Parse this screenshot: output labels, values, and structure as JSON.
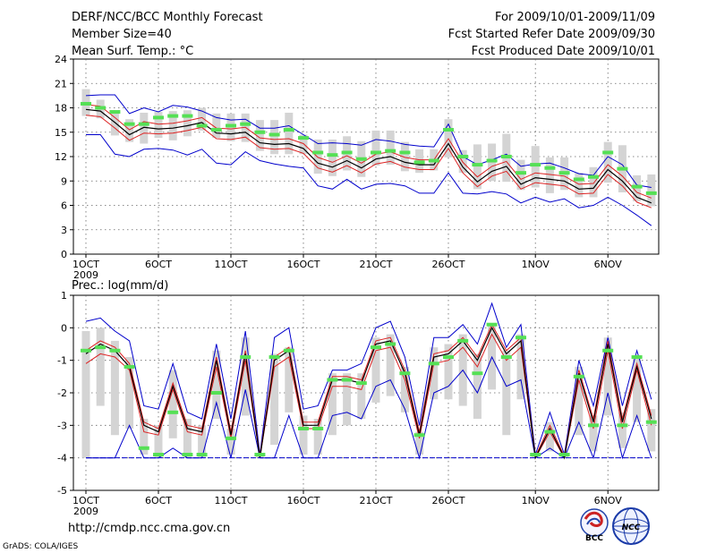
{
  "header": {
    "left_lines": [
      "DERF/NCC/BCC Monthly Forecast",
      "Member Size=40",
      "Mean Surf. Temp.: °C"
    ],
    "right_lines": [
      "For 2009/10/01-2009/11/09",
      "Fcst Started Refer Date 2009/09/30",
      "Fcst Produced Date 2009/10/01"
    ]
  },
  "footer": {
    "url": "http://cmdp.ncc.cma.gov.cn",
    "credit": "GrADS: COLA/IGES",
    "logo_bcc_text": "BCC",
    "logo_ncc_text": "NCC"
  },
  "colors": {
    "box": "#d4d4d4",
    "obs": "#55e055",
    "mean": "#000000",
    "inner": "#dd2222",
    "outer": "#0000cc",
    "grid": "#666666"
  },
  "chart_data": [
    {
      "type": "line",
      "title": "Mean Surf. Temp.: °C",
      "days": 40,
      "ylim": [
        0,
        24
      ],
      "yticks": [
        0,
        3,
        6,
        9,
        12,
        15,
        18,
        21,
        24
      ],
      "xtick_labels": [
        "1OCT",
        "6OCT",
        "11OCT",
        "16OCT",
        "21OCT",
        "26OCT",
        "1NOV",
        "6NOV"
      ],
      "xtick_days": [
        0,
        5,
        10,
        15,
        20,
        25,
        31,
        36
      ],
      "year_label": "2009",
      "series": [
        {
          "name": "mean",
          "values": [
            17.8,
            17.6,
            16.2,
            14.7,
            15.6,
            15.4,
            15.5,
            15.8,
            16.2,
            14.9,
            14.8,
            15.0,
            13.7,
            13.5,
            13.6,
            13.0,
            11.2,
            10.7,
            11.5,
            10.6,
            11.7,
            12.0,
            11.3,
            11.0,
            11.0,
            13.6,
            10.7,
            8.9,
            10.2,
            10.8,
            8.6,
            9.4,
            9.2,
            9.0,
            8.0,
            8.1,
            10.4,
            9.0,
            7.0,
            6.3
          ]
        },
        {
          "name": "inner_upper",
          "values": [
            18.4,
            18.2,
            16.8,
            15.3,
            16.3,
            16.0,
            16.1,
            16.4,
            16.8,
            15.5,
            15.4,
            15.6,
            14.3,
            14.1,
            14.2,
            13.6,
            11.9,
            11.3,
            12.1,
            11.2,
            12.3,
            12.6,
            11.9,
            11.6,
            11.6,
            14.2,
            11.3,
            9.5,
            10.8,
            11.4,
            9.2,
            10.0,
            9.8,
            9.6,
            8.6,
            8.7,
            11.0,
            9.6,
            7.6,
            6.9
          ]
        },
        {
          "name": "inner_lower",
          "values": [
            17.1,
            16.9,
            15.5,
            14.0,
            14.9,
            14.8,
            14.9,
            15.2,
            15.6,
            14.2,
            14.1,
            14.4,
            13.1,
            12.9,
            13.0,
            12.4,
            10.6,
            10.1,
            10.9,
            10.0,
            11.1,
            11.4,
            10.7,
            10.4,
            10.4,
            13.0,
            10.0,
            8.3,
            9.6,
            10.2,
            8.0,
            8.8,
            8.6,
            8.4,
            7.4,
            7.5,
            9.8,
            8.4,
            6.4,
            5.7
          ]
        },
        {
          "name": "outer_upper",
          "values": [
            19.5,
            19.6,
            19.6,
            17.3,
            18.0,
            17.5,
            18.3,
            18.1,
            17.6,
            16.8,
            16.5,
            16.6,
            15.5,
            15.5,
            15.8,
            14.7,
            13.6,
            13.7,
            13.6,
            13.4,
            14.1,
            13.9,
            13.5,
            13.3,
            13.2,
            16.0,
            12.0,
            11.0,
            11.6,
            12.3,
            10.8,
            11.1,
            11.2,
            10.6,
            9.9,
            9.7,
            12.0,
            11.0,
            8.5,
            8.2
          ]
        },
        {
          "name": "outer_lower",
          "values": [
            14.7,
            14.7,
            12.3,
            12.0,
            12.9,
            13.0,
            12.8,
            12.2,
            12.9,
            11.2,
            11.0,
            12.6,
            11.5,
            11.1,
            10.8,
            10.6,
            8.4,
            8.0,
            9.2,
            8.0,
            8.6,
            8.7,
            8.4,
            7.5,
            7.5,
            10.0,
            7.5,
            7.4,
            7.7,
            7.4,
            6.3,
            7.0,
            6.4,
            6.8,
            5.7,
            6.0,
            7.0,
            6.0,
            4.8,
            3.5
          ]
        },
        {
          "name": "obs",
          "values": [
            18.5,
            18.0,
            17.5,
            16.0,
            16.0,
            16.8,
            17.0,
            17.0,
            15.8,
            15.3,
            15.8,
            16.0,
            15.0,
            14.7,
            15.3,
            14.3,
            12.5,
            12.2,
            12.5,
            11.7,
            12.5,
            12.7,
            12.5,
            11.3,
            11.5,
            15.3,
            12.0,
            11.0,
            11.5,
            12.0,
            10.0,
            11.0,
            10.6,
            10.0,
            9.2,
            9.5,
            12.5,
            10.5,
            8.3,
            7.5
          ]
        },
        {
          "name": "box_upper",
          "values": [
            20.3,
            19.0,
            17.5,
            16.6,
            17.4,
            17.5,
            17.6,
            17.7,
            18.0,
            17.3,
            17.3,
            17.3,
            16.5,
            16.5,
            17.4,
            14.7,
            14.1,
            14.1,
            14.5,
            13.9,
            15.2,
            15.2,
            13.8,
            12.9,
            12.9,
            16.6,
            12.8,
            13.5,
            13.6,
            14.8,
            11.6,
            13.3,
            11.9,
            11.9,
            10.0,
            10.7,
            13.8,
            13.4,
            9.7,
            9.8
          ]
        },
        {
          "name": "box_lower",
          "values": [
            17.0,
            16.7,
            14.6,
            13.8,
            13.6,
            14.3,
            14.0,
            14.5,
            15.2,
            14.3,
            13.9,
            13.8,
            12.7,
            12.3,
            12.3,
            12.3,
            9.9,
            9.6,
            10.3,
            9.5,
            10.9,
            11.0,
            10.2,
            10.0,
            10.3,
            11.9,
            10.0,
            8.0,
            9.0,
            8.9,
            7.9,
            8.2,
            7.5,
            7.9,
            7.0,
            7.0,
            8.8,
            7.6,
            6.5,
            5.9
          ]
        }
      ]
    },
    {
      "type": "line",
      "title": "Prec.: log(mm/d)",
      "days": 40,
      "ylim": [
        -5,
        1
      ],
      "yticks": [
        -5,
        -4,
        -3,
        -2,
        -1,
        0,
        1
      ],
      "xtick_labels": [
        "1OCT",
        "6OCT",
        "11OCT",
        "16OCT",
        "21OCT",
        "26OCT",
        "1NOV",
        "6NOV"
      ],
      "xtick_days": [
        0,
        5,
        10,
        15,
        20,
        25,
        31,
        36
      ],
      "year_label": "2009",
      "series": [
        {
          "name": "mean",
          "values": [
            -0.8,
            -0.5,
            -0.7,
            -1.2,
            -3.0,
            -3.2,
            -1.8,
            -3.1,
            -3.2,
            -1.0,
            -3.3,
            -0.8,
            -4.0,
            -1.0,
            -0.7,
            -3.0,
            -3.0,
            -1.6,
            -1.6,
            -1.7,
            -0.5,
            -0.4,
            -1.4,
            -3.3,
            -0.9,
            -0.8,
            -0.4,
            -1.0,
            0.0,
            -0.8,
            -0.4,
            -4.0,
            -3.1,
            -4.0,
            -1.4,
            -2.9,
            -0.5,
            -2.9,
            -1.2,
            -2.8
          ]
        },
        {
          "name": "inner_upper",
          "values": [
            -0.7,
            -0.4,
            -0.6,
            -1.1,
            -2.9,
            -3.1,
            -1.7,
            -3.0,
            -3.1,
            -0.9,
            -3.2,
            -0.7,
            -3.95,
            -0.9,
            -0.6,
            -2.9,
            -2.9,
            -1.5,
            -1.5,
            -1.6,
            -0.4,
            -0.3,
            -1.3,
            -3.2,
            -0.8,
            -0.7,
            -0.3,
            -0.9,
            0.1,
            -0.7,
            -0.3,
            -3.95,
            -3.0,
            -3.95,
            -1.3,
            -2.8,
            -0.4,
            -2.8,
            -1.1,
            -2.7
          ]
        },
        {
          "name": "inner_lower",
          "values": [
            -1.1,
            -0.8,
            -0.9,
            -1.3,
            -3.2,
            -3.3,
            -1.9,
            -3.2,
            -3.3,
            -1.2,
            -3.4,
            -1.0,
            -4.0,
            -1.2,
            -0.9,
            -3.1,
            -3.1,
            -1.8,
            -1.8,
            -1.9,
            -0.7,
            -0.6,
            -1.6,
            -3.4,
            -1.1,
            -1.0,
            -0.6,
            -1.2,
            -0.2,
            -1.0,
            -0.6,
            -4.0,
            -3.2,
            -4.0,
            -1.6,
            -3.1,
            -0.7,
            -3.1,
            -1.3,
            -3.0
          ]
        },
        {
          "name": "outer_upper",
          "values": [
            0.2,
            0.3,
            -0.1,
            -0.4,
            -2.4,
            -2.5,
            -1.1,
            -2.6,
            -2.8,
            -0.5,
            -2.8,
            -0.1,
            -3.9,
            -0.3,
            0.0,
            -2.5,
            -2.4,
            -1.3,
            -1.3,
            -1.1,
            0.0,
            0.2,
            -0.9,
            -3.0,
            -0.3,
            -0.3,
            0.1,
            -0.5,
            0.75,
            -0.6,
            0.1,
            -3.9,
            -2.6,
            -3.9,
            -1.0,
            -2.4,
            -0.3,
            -2.4,
            -0.7,
            -2.2
          ]
        },
        {
          "name": "outer_lower",
          "values": [
            -4.0,
            -4.0,
            -4.0,
            -3.0,
            -4.0,
            -4.0,
            -3.7,
            -4.0,
            -4.0,
            -2.3,
            -4.0,
            -1.9,
            -4.0,
            -4.0,
            -2.7,
            -4.0,
            -4.0,
            -2.7,
            -2.6,
            -2.8,
            -1.8,
            -1.6,
            -2.5,
            -4.0,
            -2.0,
            -1.8,
            -1.3,
            -2.0,
            -0.9,
            -1.8,
            -1.6,
            -4.0,
            -3.7,
            -4.0,
            -2.9,
            -4.0,
            -2.0,
            -4.0,
            -2.7,
            -4.0
          ]
        },
        {
          "name": "obs",
          "values": [
            -0.7,
            -0.6,
            -0.7,
            -1.2,
            -3.7,
            -3.9,
            -2.6,
            -3.9,
            -3.9,
            -2.0,
            -3.4,
            -0.9,
            -3.9,
            -0.9,
            -0.7,
            -3.1,
            -3.1,
            -1.6,
            -1.6,
            -1.7,
            -0.6,
            -0.5,
            -1.4,
            -3.3,
            -1.1,
            -0.9,
            -0.4,
            -1.4,
            0.1,
            -0.9,
            -0.3,
            -3.9,
            -3.2,
            -3.9,
            -1.5,
            -3.0,
            -0.7,
            -3.0,
            -0.9,
            -2.9
          ]
        },
        {
          "name": "box_upper",
          "values": [
            -0.1,
            0.0,
            -0.4,
            -0.9,
            -2.8,
            -3.0,
            -1.3,
            -2.8,
            -3.0,
            -0.7,
            -3.1,
            -0.3,
            -3.9,
            -0.8,
            -0.6,
            -2.7,
            -2.8,
            -1.4,
            -1.4,
            -1.4,
            -0.3,
            -0.2,
            -1.2,
            -3.2,
            -0.6,
            -0.5,
            -0.2,
            -0.8,
            0.1,
            -0.7,
            -0.2,
            -3.9,
            -2.9,
            -3.9,
            -1.2,
            -2.7,
            -0.3,
            -2.6,
            -0.9,
            -2.5
          ]
        },
        {
          "name": "box_lower",
          "values": [
            -4.0,
            -2.4,
            -3.3,
            -3.1,
            -3.9,
            -4.0,
            -3.4,
            -4.0,
            -4.0,
            -2.8,
            -3.9,
            -2.7,
            -4.0,
            -3.6,
            -2.6,
            -3.9,
            -3.9,
            -3.3,
            -3.0,
            -2.8,
            -2.3,
            -2.1,
            -2.6,
            -3.9,
            -2.2,
            -2.2,
            -2.4,
            -2.8,
            -1.9,
            -3.3,
            -2.2,
            -4.0,
            -3.8,
            -4.0,
            -3.3,
            -3.8,
            -2.7,
            -3.7,
            -2.9,
            -3.8
          ]
        }
      ]
    }
  ]
}
